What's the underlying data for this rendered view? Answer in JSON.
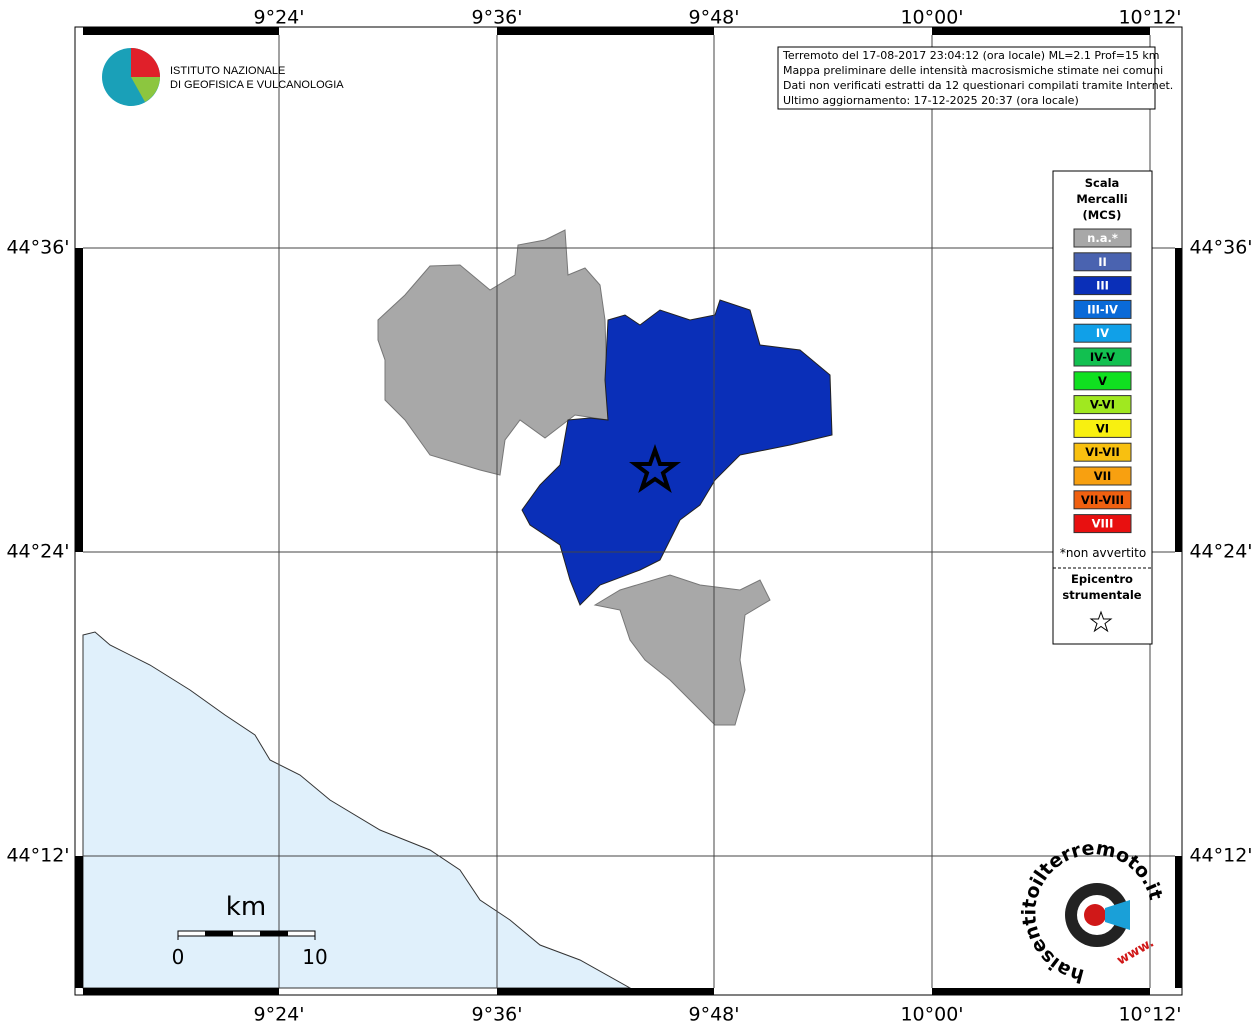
{
  "map": {
    "x_labels": [
      "9°24'",
      "9°36'",
      "9°48'",
      "10°00'",
      "10°12'"
    ],
    "y_labels": [
      "44°36'",
      "44°24'",
      "44°12'"
    ]
  },
  "info": {
    "lines": [
      "Terremoto del 17-08-2017 23:04:12 (ora locale) ML=2.1 Prof=15 km",
      "Mappa preliminare delle intensità macrosismiche stimate nei comuni",
      "Dati non verificati estratti da 12 questionari compilati tramite Internet.",
      "Ultimo aggiornamento: 17-12-2025 20:37 (ora locale)"
    ]
  },
  "logo": {
    "line1": "ISTITUTO NAZIONALE",
    "line2": "DI GEOFISICA E VULCANOLOGIA"
  },
  "legend": {
    "title": [
      "Scala",
      "Mercalli",
      "(MCS)"
    ],
    "items": [
      {
        "label": "n.a.*",
        "color": "#a8a8a8",
        "text_color": "#ffffff"
      },
      {
        "label": "II",
        "color": "#4a63b0",
        "text_color": "#ffffff"
      },
      {
        "label": "III",
        "color": "#0a2fb8",
        "text_color": "#ffffff"
      },
      {
        "label": "III-IV",
        "color": "#0a6ad8",
        "text_color": "#ffffff"
      },
      {
        "label": "IV",
        "color": "#10a0e8",
        "text_color": "#ffffff"
      },
      {
        "label": "IV-V",
        "color": "#12c050",
        "text_color": "#000000"
      },
      {
        "label": "V",
        "color": "#10e020",
        "text_color": "#000000"
      },
      {
        "label": "V-VI",
        "color": "#a0e820",
        "text_color": "#000000"
      },
      {
        "label": "VI",
        "color": "#f8f010",
        "text_color": "#000000"
      },
      {
        "label": "VI-VII",
        "color": "#f8c010",
        "text_color": "#000000"
      },
      {
        "label": "VII",
        "color": "#f8a010",
        "text_color": "#000000"
      },
      {
        "label": "VII-VIII",
        "color": "#f06010",
        "text_color": "#000000"
      },
      {
        "label": "VIII",
        "color": "#e81010",
        "text_color": "#ffffff"
      }
    ],
    "note": "*non avvertito",
    "epicenter": [
      "Epicentro",
      "strumentale"
    ]
  },
  "scale_bar": {
    "unit": "km",
    "labels": [
      "0",
      "10"
    ]
  },
  "watermark": {
    "site": "haisentitoilterremoto.it",
    "prefix": "www."
  }
}
